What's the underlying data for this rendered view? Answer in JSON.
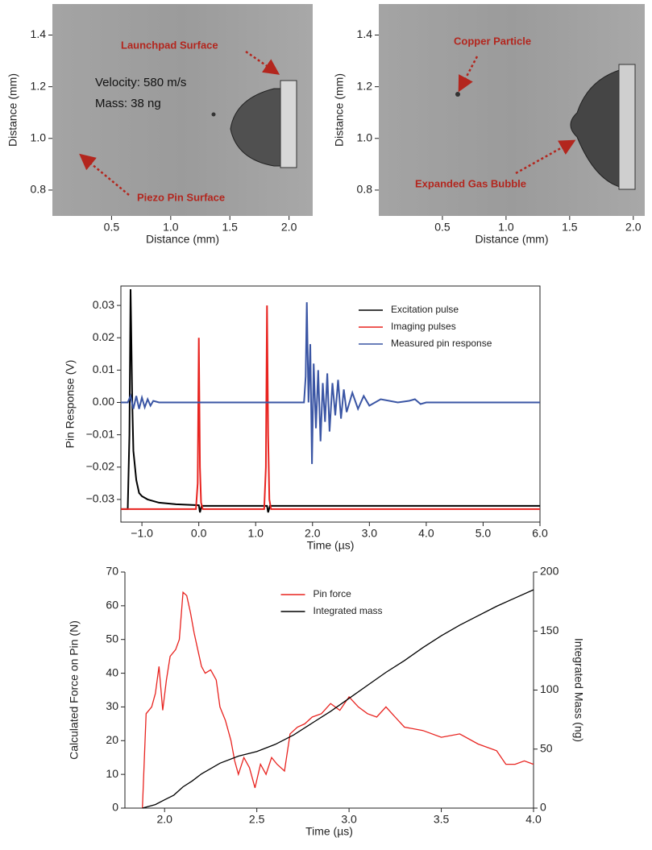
{
  "chart_data": [
    {
      "type": "image",
      "xlabel": "Distance (mm)",
      "ylabel": "Distance (mm)",
      "xlim": [
        0,
        2.2
      ],
      "ylim": [
        0.7,
        1.52
      ],
      "xticks": [
        0.5,
        {
          "value": 1.0,
          "label": "1.0"
        },
        1.5,
        {
          "value": 2.0,
          "label": "2.0"
        }
      ],
      "yticks": [
        0.8,
        {
          "value": 1.0,
          "label": "1.0"
        },
        1.2,
        1.4
      ],
      "annotations": [
        "Launchpad Surface",
        "Velocity: 580 m/s",
        "Mass: 38 ng",
        "Piezo Pin Surface"
      ]
    },
    {
      "type": "image",
      "xlabel": "Distance (mm)",
      "ylabel": "Distance (mm)",
      "xlim": [
        0,
        2.09
      ],
      "ylim": [
        0.7,
        1.52
      ],
      "xticks": [
        0.5,
        {
          "value": 1.0,
          "label": "1.0"
        },
        1.5,
        {
          "value": 2.0,
          "label": "2.0"
        }
      ],
      "yticks": [
        0.8,
        {
          "value": 1.0,
          "label": "1.0"
        },
        1.2,
        1.4
      ],
      "annotations": [
        "Copper Particle",
        "Expanded Gas Bubble"
      ]
    },
    {
      "type": "line",
      "xlabel": "Time (µs)",
      "ylabel": "Pin Response (V)",
      "xlim": [
        -1.37,
        6.0
      ],
      "ylim": [
        -0.037,
        0.036
      ],
      "xticks": [
        {
          "value": -1.0,
          "label": "−1.0"
        },
        {
          "value": 0.0,
          "label": "0.0"
        },
        {
          "value": 1.0,
          "label": "1.0"
        },
        {
          "value": 2.0,
          "label": "2.0"
        },
        {
          "value": 3.0,
          "label": "3.0"
        },
        {
          "value": 4.0,
          "label": "4.0"
        },
        {
          "value": 5.0,
          "label": "5.0"
        },
        {
          "value": 6.0,
          "label": "6.0"
        }
      ],
      "yticks": [
        {
          "value": -0.03,
          "label": "−0.03"
        },
        {
          "value": -0.02,
          "label": "−0.02"
        },
        {
          "value": -0.01,
          "label": "−0.01"
        },
        {
          "value": 0.0,
          "label": "0.00"
        },
        0.01,
        0.02,
        0.03
      ],
      "legend": "upper right",
      "series": [
        {
          "name": "Excitation pulse",
          "color": "#000000",
          "x": [
            -1.37,
            -1.25,
            -1.22,
            -1.2,
            -1.19,
            -1.17,
            -1.15,
            -1.1,
            -1.05,
            -1.0,
            -0.9,
            -0.7,
            -0.4,
            0.0,
            0.02,
            0.05,
            0.5,
            1.0,
            1.2,
            1.22,
            1.25,
            2.0,
            3.0,
            4.0,
            5.0,
            6.0
          ],
          "values": [
            -0.033,
            -0.033,
            -0.01,
            0.035,
            0.024,
            0.0,
            -0.015,
            -0.024,
            -0.028,
            -0.029,
            -0.03,
            -0.031,
            -0.0315,
            -0.0318,
            -0.034,
            -0.032,
            -0.032,
            -0.032,
            -0.032,
            -0.034,
            -0.032,
            -0.032,
            -0.032,
            -0.032,
            -0.032,
            -0.032
          ]
        },
        {
          "name": "Imaging pulses",
          "color": "#e8231f",
          "x": [
            -1.37,
            -0.05,
            -0.02,
            0.0,
            0.02,
            0.04,
            0.07,
            1.15,
            1.18,
            1.2,
            1.22,
            1.24,
            1.27,
            6.0
          ],
          "values": [
            -0.033,
            -0.033,
            -0.025,
            0.02,
            -0.02,
            -0.031,
            -0.033,
            -0.033,
            -0.02,
            0.03,
            -0.01,
            -0.03,
            -0.033,
            -0.033
          ]
        },
        {
          "name": "Measured pin response",
          "color": "#3a55a4",
          "x": [
            -1.37,
            -1.25,
            -1.2,
            -1.15,
            -1.1,
            -1.05,
            -1.0,
            -0.95,
            -0.9,
            -0.85,
            -0.8,
            -0.7,
            1.8,
            1.85,
            1.88,
            1.9,
            1.93,
            1.96,
            1.99,
            2.02,
            2.06,
            2.1,
            2.14,
            2.18,
            2.22,
            2.26,
            2.3,
            2.35,
            2.4,
            2.45,
            2.5,
            2.55,
            2.6,
            2.7,
            2.8,
            2.9,
            3.0,
            3.2,
            3.5,
            3.7,
            3.8,
            3.9,
            4.0,
            6.0
          ],
          "values": [
            0,
            0,
            0.002,
            -0.002,
            0.002,
            -0.002,
            0.0015,
            -0.0015,
            0.001,
            -0.001,
            0.0005,
            0,
            0,
            0,
            0.008,
            0.031,
            0.0,
            0.018,
            -0.019,
            0.012,
            -0.008,
            0.01,
            -0.012,
            0.006,
            -0.006,
            0.009,
            -0.009,
            0.006,
            -0.004,
            0.007,
            -0.005,
            0.004,
            -0.003,
            0.003,
            -0.002,
            0.002,
            -0.001,
            0.001,
            0,
            0.0005,
            0.001,
            -0.0005,
            0,
            0
          ]
        }
      ]
    },
    {
      "type": "line",
      "xlabel": "Time (µs)",
      "ylabel": "Calculated Force on Pin (N)",
      "y2label": "Integrated Mass  (ng)",
      "xlim": [
        1.785,
        4.0
      ],
      "ylim": [
        0,
        70
      ],
      "y2lim": [
        0,
        200
      ],
      "xticks": [
        {
          "value": 2.0,
          "label": "2.0"
        },
        2.5,
        {
          "value": 3.0,
          "label": "3.0"
        },
        3.5,
        {
          "value": 4.0,
          "label": "4.0"
        }
      ],
      "yticks": [
        0,
        10,
        20,
        30,
        40,
        50,
        60,
        70
      ],
      "y2ticks": [
        0,
        50,
        100,
        150,
        200
      ],
      "legend": "upper center",
      "series": [
        {
          "name": "Pin force",
          "color": "#e8231f",
          "x": [
            1.88,
            1.9,
            1.93,
            1.95,
            1.97,
            1.99,
            2.01,
            2.03,
            2.06,
            2.08,
            2.1,
            2.12,
            2.14,
            2.16,
            2.18,
            2.2,
            2.22,
            2.25,
            2.28,
            2.3,
            2.33,
            2.36,
            2.38,
            2.4,
            2.43,
            2.46,
            2.49,
            2.52,
            2.55,
            2.58,
            2.61,
            2.65,
            2.68,
            2.72,
            2.76,
            2.8,
            2.85,
            2.9,
            2.95,
            3.0,
            3.05,
            3.1,
            3.15,
            3.2,
            3.25,
            3.3,
            3.4,
            3.5,
            3.6,
            3.7,
            3.8,
            3.85,
            3.9,
            3.95,
            4.0
          ],
          "values": [
            0,
            28,
            30,
            34,
            42,
            29,
            38,
            45,
            47,
            50,
            64,
            63,
            58,
            52,
            47,
            42,
            40,
            41,
            38,
            30,
            26,
            20,
            14,
            10,
            15,
            12,
            6,
            13,
            10,
            15,
            13,
            11,
            22,
            24,
            25,
            27,
            28,
            31,
            29,
            33,
            30,
            28,
            27,
            30,
            27,
            24,
            23,
            21,
            22,
            19,
            17,
            13,
            13,
            14,
            13
          ]
        },
        {
          "name": "Integrated mass",
          "color": "#000000",
          "axis": "y2",
          "x": [
            1.88,
            1.95,
            2.0,
            2.05,
            2.1,
            2.15,
            2.2,
            2.3,
            2.4,
            2.5,
            2.6,
            2.7,
            2.8,
            2.9,
            3.0,
            3.1,
            3.2,
            3.3,
            3.4,
            3.5,
            3.6,
            3.7,
            3.8,
            3.9,
            4.0
          ],
          "values": [
            0,
            3,
            7,
            11,
            18,
            23,
            29,
            38,
            44,
            48,
            54,
            62,
            72,
            82,
            93,
            104,
            115,
            125,
            136,
            146,
            155,
            163,
            171,
            178,
            185
          ]
        }
      ]
    }
  ]
}
